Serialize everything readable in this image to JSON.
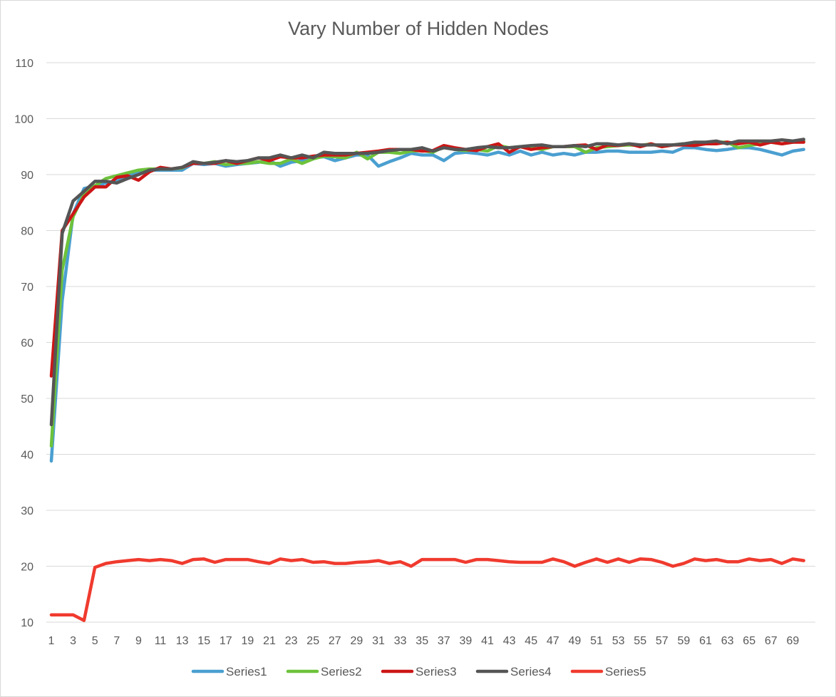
{
  "chart_data": {
    "type": "line",
    "title": "Vary Number of Hidden Nodes",
    "xlabel": "",
    "ylabel": "",
    "ylim": [
      10,
      110
    ],
    "y_ticks": [
      10,
      20,
      30,
      40,
      50,
      60,
      70,
      80,
      90,
      100,
      110
    ],
    "x_count": 70,
    "x_tick_labels": [
      "1",
      "3",
      "5",
      "7",
      "9",
      "11",
      "13",
      "15",
      "17",
      "19",
      "21",
      "23",
      "25",
      "27",
      "29",
      "31",
      "33",
      "35",
      "37",
      "39",
      "41",
      "43",
      "45",
      "47",
      "49",
      "51",
      "53",
      "55",
      "57",
      "59",
      "61",
      "63",
      "65",
      "67",
      "69"
    ],
    "grid": "horizontal",
    "legend_position": "bottom",
    "series": [
      {
        "name": "Series1",
        "color": "#4a9fd0",
        "values": [
          38.8,
          67.5,
          83.0,
          87.5,
          88.0,
          88.5,
          89.0,
          89.8,
          90.5,
          90.8,
          90.8,
          90.8,
          90.8,
          92.0,
          91.8,
          92.0,
          91.5,
          91.8,
          92.0,
          92.2,
          92.5,
          91.5,
          92.2,
          92.5,
          93.0,
          93.2,
          92.5,
          93.0,
          93.5,
          93.5,
          91.5,
          92.3,
          93.0,
          93.8,
          93.5,
          93.5,
          92.5,
          93.8,
          94.0,
          93.8,
          93.5,
          94.0,
          93.5,
          94.2,
          93.5,
          94.0,
          93.5,
          93.8,
          93.5,
          94.0,
          94.0,
          94.2,
          94.2,
          94.0,
          94.0,
          94.0,
          94.2,
          94.0,
          94.8,
          94.8,
          94.5,
          94.3,
          94.5,
          94.8,
          94.8,
          94.5,
          94.0,
          93.5,
          94.2,
          94.5
        ]
      },
      {
        "name": "Series2",
        "color": "#6dc23b",
        "values": [
          41.5,
          73.0,
          82.5,
          86.5,
          88.0,
          89.3,
          89.8,
          90.3,
          90.8,
          91.0,
          91.0,
          91.0,
          91.2,
          92.2,
          92.0,
          92.3,
          91.8,
          92.0,
          92.0,
          92.3,
          92.0,
          92.0,
          92.8,
          92.0,
          92.8,
          93.3,
          93.2,
          93.0,
          94.0,
          92.8,
          94.0,
          94.0,
          93.8,
          94.2,
          94.3,
          94.0,
          95.0,
          94.5,
          94.3,
          94.5,
          94.2,
          95.2,
          94.8,
          95.0,
          94.8,
          94.5,
          95.0,
          95.0,
          95.0,
          94.0,
          94.8,
          95.0,
          95.2,
          95.3,
          95.2,
          95.5,
          95.0,
          95.3,
          95.5,
          95.5,
          95.5,
          95.8,
          95.8,
          94.8,
          95.2,
          95.5,
          95.8,
          95.5,
          95.8,
          96.0
        ]
      },
      {
        "name": "Series3",
        "color": "#cc1616",
        "values": [
          54.0,
          80.0,
          83.0,
          86.0,
          87.8,
          87.8,
          89.5,
          89.8,
          89.0,
          90.5,
          91.3,
          91.0,
          91.3,
          92.0,
          92.0,
          92.0,
          92.5,
          92.0,
          92.5,
          93.0,
          92.5,
          93.2,
          93.0,
          93.0,
          93.3,
          93.5,
          93.5,
          93.5,
          93.8,
          94.0,
          94.2,
          94.5,
          94.5,
          94.5,
          94.2,
          94.3,
          95.2,
          94.8,
          94.5,
          94.3,
          95.0,
          95.5,
          94.0,
          95.0,
          94.5,
          94.8,
          95.0,
          95.0,
          95.2,
          95.3,
          94.5,
          95.3,
          95.2,
          95.5,
          95.0,
          95.5,
          95.0,
          95.3,
          95.3,
          95.2,
          95.5,
          95.5,
          95.8,
          95.5,
          95.8,
          95.3,
          95.8,
          95.5,
          95.8,
          95.8
        ]
      },
      {
        "name": "Series4",
        "color": "#555555",
        "values": [
          45.3,
          79.5,
          85.3,
          87.0,
          88.8,
          88.8,
          88.5,
          89.3,
          90.0,
          90.8,
          91.0,
          91.0,
          91.3,
          92.3,
          92.0,
          92.2,
          92.5,
          92.3,
          92.5,
          93.0,
          93.0,
          93.5,
          93.0,
          93.5,
          93.0,
          94.0,
          93.8,
          93.8,
          93.8,
          93.8,
          94.0,
          94.3,
          94.5,
          94.5,
          94.8,
          94.2,
          94.8,
          94.5,
          94.5,
          94.8,
          95.0,
          94.8,
          94.8,
          95.0,
          95.2,
          95.3,
          95.0,
          95.0,
          95.2,
          95.0,
          95.5,
          95.5,
          95.3,
          95.5,
          95.3,
          95.3,
          95.3,
          95.3,
          95.5,
          95.8,
          95.8,
          96.0,
          95.5,
          96.0,
          96.0,
          96.0,
          96.0,
          96.2,
          96.0,
          96.3
        ]
      },
      {
        "name": "Series5",
        "color": "#f03a2e",
        "values": [
          11.3,
          11.3,
          11.3,
          10.3,
          19.8,
          20.5,
          20.8,
          21.0,
          21.2,
          21.0,
          21.2,
          21.0,
          20.5,
          21.2,
          21.3,
          20.7,
          21.2,
          21.2,
          21.2,
          20.8,
          20.5,
          21.3,
          21.0,
          21.2,
          20.7,
          20.8,
          20.5,
          20.5,
          20.7,
          20.8,
          21.0,
          20.5,
          20.8,
          20.0,
          21.2,
          21.2,
          21.2,
          21.2,
          20.7,
          21.2,
          21.2,
          21.0,
          20.8,
          20.7,
          20.7,
          20.7,
          21.3,
          20.8,
          20.0,
          20.7,
          21.3,
          20.7,
          21.3,
          20.7,
          21.3,
          21.2,
          20.7,
          20.0,
          20.5,
          21.3,
          21.0,
          21.2,
          20.8,
          20.8,
          21.3,
          21.0,
          21.2,
          20.5,
          21.3,
          21.0
        ]
      }
    ]
  }
}
